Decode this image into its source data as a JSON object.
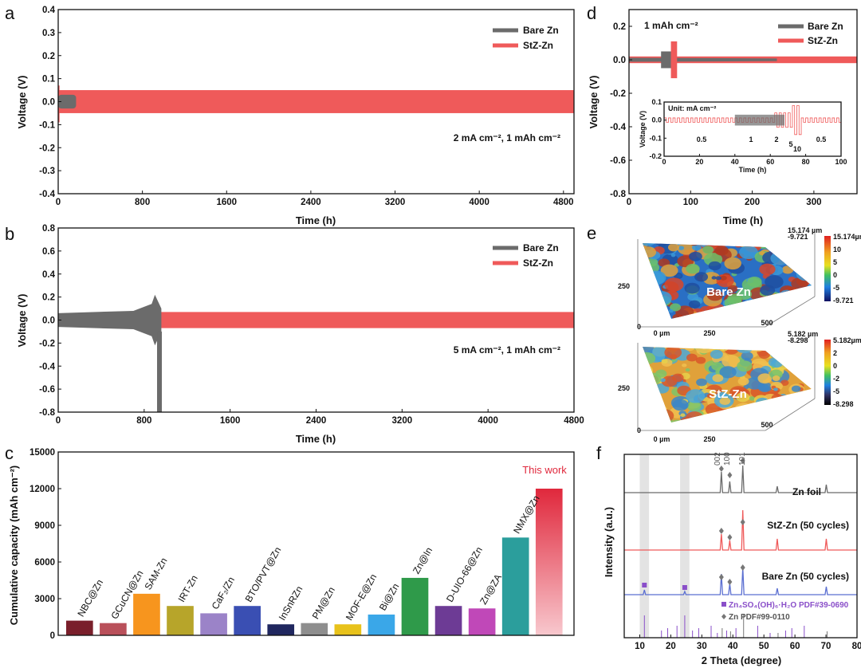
{
  "chart_data": [
    {
      "panel": "a",
      "type": "line",
      "xlabel": "Time (h)",
      "ylabel": "Voltage (V)",
      "xlim": [
        0,
        4900
      ],
      "ylim": [
        -0.4,
        0.4
      ],
      "xticks": [
        "0",
        "800",
        "1600",
        "2400",
        "3200",
        "4000",
        "4800"
      ],
      "yticks": [
        "0.4",
        "0.3",
        "0.2",
        "0.1",
        "0.0",
        "-0.1",
        "-0.2",
        "-0.3",
        "-0.4"
      ],
      "series": [
        {
          "name": "Bare Zn",
          "color": "#6b6b6b",
          "t_end": 170,
          "amplitude": 0.03
        },
        {
          "name": "StZ-Zn",
          "color": "#ef5a5a",
          "t_end": 4900,
          "amplitude": 0.05
        }
      ],
      "annotation": "2 mA cm⁻², 1 mAh cm⁻²"
    },
    {
      "panel": "b",
      "type": "line",
      "xlabel": "Time (h)",
      "ylabel": "Voltage (V)",
      "xlim": [
        0,
        4800
      ],
      "ylim": [
        -0.8,
        0.8
      ],
      "xticks": [
        "0",
        "800",
        "1600",
        "2400",
        "3200",
        "4000",
        "4800"
      ],
      "yticks": [
        "0.8",
        "0.6",
        "0.4",
        "0.2",
        "0.0",
        "-0.2",
        "-0.4",
        "-0.6",
        "-0.8"
      ],
      "series": [
        {
          "name": "Bare Zn",
          "color": "#6b6b6b",
          "t_end": 920,
          "amplitude": 0.07,
          "failure_min": -0.8
        },
        {
          "name": "StZ-Zn",
          "color": "#ef5a5a",
          "t_end": 4800,
          "amplitude": 0.07
        }
      ],
      "annotation": "5 mA cm⁻², 1 mAh cm⁻²"
    },
    {
      "panel": "c",
      "type": "bar",
      "ylabel": "Cumulative capacity (mAh cm⁻²)",
      "ylim": [
        0,
        15000
      ],
      "yticks": [
        "15000",
        "12000",
        "9000",
        "6000",
        "3000",
        "0"
      ],
      "categories": [
        "NBC@Zn",
        "GCuCN@Zn",
        "SAM-Zn",
        "IRT-Zn",
        "CaF₂/Zn",
        "BTO/PVT@Zn",
        "InSnRZn",
        "PM@Zn",
        "MOF-E@Zn",
        "Bi@Zn",
        "Zn@In",
        "D-UIO-66@Zn",
        "Zn@ZA",
        "NMX@Zn",
        ""
      ],
      "values": [
        1200,
        1000,
        3400,
        2400,
        1800,
        2400,
        900,
        1000,
        900,
        1700,
        4700,
        2400,
        2200,
        8000,
        12000
      ],
      "colors": [
        "#7a1f2b",
        "#b9505a",
        "#f7951e",
        "#b7a52a",
        "#9b83c8",
        "#3a4fb3",
        "#20275f",
        "#8e8e8e",
        "#e8c21b",
        "#3aa7e8",
        "#2f9a4a",
        "#6d3b95",
        "#c048b8",
        "#2b9e9c",
        "#e0283c"
      ],
      "highlight": "This work"
    },
    {
      "panel": "d",
      "type": "line",
      "xlabel": "Time (h)",
      "ylabel": "Voltage (V)",
      "xlim": [
        0,
        370
      ],
      "ylim": [
        -0.8,
        0.3
      ],
      "xticks": [
        "0",
        "100",
        "200",
        "300"
      ],
      "yticks": [
        "0.2",
        "0.0",
        "-0.2",
        "-0.4",
        "-0.6",
        "-0.8"
      ],
      "annotation": "1 mAh cm⁻²",
      "series": [
        {
          "name": "Bare Zn",
          "color": "#6b6b6b"
        },
        {
          "name": "StZ-Zn",
          "color": "#ef5a5a"
        }
      ],
      "inset": {
        "title": "Unit: mA cm⁻²",
        "xlabel": "Time (h)",
        "ylabel": "Voltage (V)",
        "xlim": [
          0,
          100
        ],
        "ylim": [
          -0.2,
          0.1
        ],
        "xticks": [
          "0",
          "20",
          "40",
          "60",
          "80",
          "100"
        ],
        "yticks": [
          "0.1",
          "0.0",
          "-0.1",
          "-0.2"
        ],
        "rate_labels": [
          "0.5",
          "1",
          "2",
          "5",
          "10",
          "0.5"
        ]
      }
    },
    {
      "panel": "e",
      "type": "heatmap",
      "maps": [
        {
          "label": "Bare Zn",
          "zmax_label": "15.174 µm",
          "zmin_label": "-9.721",
          "colorbar": [
            "15.174µm",
            "10",
            "5",
            "0",
            "-5",
            "-9.721"
          ],
          "xticks": [
            "0 µm",
            "250",
            "500"
          ],
          "yticks": [
            "250",
            "0"
          ]
        },
        {
          "label": "StZ-Zn",
          "zmax_label": "5.182 µm",
          "zmin_label": "-8.298",
          "colorbar": [
            "5.182µm",
            "2",
            "0",
            "-2",
            "-5",
            "-8.298"
          ],
          "xticks": [
            "0 µm",
            "250",
            "500"
          ],
          "yticks": [
            "250",
            "0"
          ]
        }
      ]
    },
    {
      "panel": "f",
      "type": "line",
      "xlabel": "2 Theta (degree)",
      "ylabel": "Intensity (a.u.)",
      "xlim": [
        5,
        80
      ],
      "xticks": [
        "10",
        "20",
        "30",
        "40",
        "50",
        "60",
        "70",
        "80"
      ],
      "series": [
        {
          "name": "Zn foil",
          "color": "#6b6b6b",
          "peaks": [
            36.3,
            39.0,
            43.2,
            54.3,
            70.1
          ]
        },
        {
          "name": "StZ-Zn (50 cycles)",
          "color": "#ef5a5a",
          "peaks": [
            36.3,
            39.0,
            43.2,
            54.3,
            70.1
          ]
        },
        {
          "name": "Bare Zn (50 cycles)",
          "color": "#5b6fd1",
          "peaks": [
            11.5,
            24.5,
            36.3,
            39.0,
            43.2,
            54.3,
            70.1
          ]
        }
      ],
      "peak_labels": [
        "002",
        "100",
        "101"
      ],
      "references": [
        "Zn₄SO₄(OH)₆·H₂O PDF#39-0690",
        "Zn PDF#99-0110"
      ],
      "shaded_ranges": [
        [
          10,
          13
        ],
        [
          23,
          26
        ]
      ]
    }
  ],
  "labels": {
    "a": "a",
    "b": "b",
    "c": "c",
    "d": "d",
    "e": "e",
    "f": "f"
  }
}
